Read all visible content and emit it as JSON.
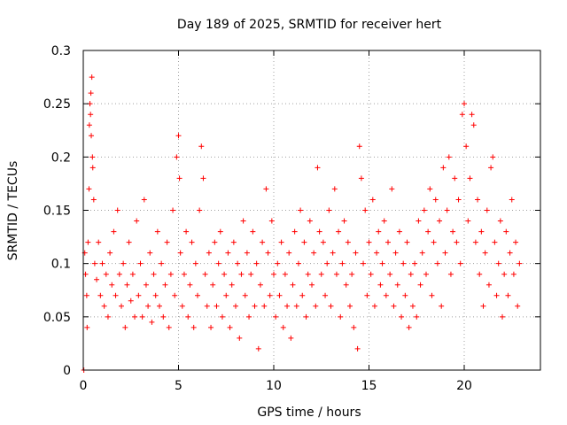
{
  "chart_data": {
    "type": "scatter",
    "title": "Day 189 of 2025, SRMTID for receiver hert",
    "xlabel": "GPS time / hours",
    "ylabel": "SRMTID / TECUs",
    "xlim": [
      0,
      24
    ],
    "ylim": [
      0,
      0.3
    ],
    "x_ticks": [
      0,
      5,
      10,
      15,
      20
    ],
    "x_tick_labels": [
      "0",
      "5",
      "10",
      "15",
      "20"
    ],
    "y_ticks": [
      0,
      0.05,
      0.1,
      0.15,
      0.2,
      0.25,
      0.3
    ],
    "y_tick_labels": [
      "0",
      "0.05",
      "0.1",
      "0.15",
      "0.2",
      "0.25",
      "0.3"
    ],
    "grid": true,
    "marker": "plus",
    "color": "#ff0000",
    "series": [
      {
        "name": "SRMTID",
        "points": [
          [
            0.03,
            0.0
          ],
          [
            0.08,
            0.11
          ],
          [
            0.12,
            0.09
          ],
          [
            0.18,
            0.07
          ],
          [
            0.2,
            0.04
          ],
          [
            0.25,
            0.12
          ],
          [
            0.3,
            0.17
          ],
          [
            0.32,
            0.23
          ],
          [
            0.35,
            0.25
          ],
          [
            0.38,
            0.24
          ],
          [
            0.4,
            0.26
          ],
          [
            0.42,
            0.22
          ],
          [
            0.45,
            0.275
          ],
          [
            0.48,
            0.2
          ],
          [
            0.5,
            0.19
          ],
          [
            0.55,
            0.16
          ],
          [
            0.6,
            0.1
          ],
          [
            0.7,
            0.085
          ],
          [
            0.8,
            0.12
          ],
          [
            0.9,
            0.07
          ],
          [
            1.0,
            0.1
          ],
          [
            1.1,
            0.06
          ],
          [
            1.2,
            0.09
          ],
          [
            1.3,
            0.05
          ],
          [
            1.4,
            0.11
          ],
          [
            1.5,
            0.08
          ],
          [
            1.6,
            0.13
          ],
          [
            1.7,
            0.07
          ],
          [
            1.8,
            0.15
          ],
          [
            1.9,
            0.09
          ],
          [
            2.0,
            0.06
          ],
          [
            2.1,
            0.1
          ],
          [
            2.2,
            0.04
          ],
          [
            2.3,
            0.08
          ],
          [
            2.4,
            0.12
          ],
          [
            2.5,
            0.065
          ],
          [
            2.6,
            0.09
          ],
          [
            2.7,
            0.05
          ],
          [
            2.8,
            0.14
          ],
          [
            2.9,
            0.07
          ],
          [
            3.0,
            0.1
          ],
          [
            3.1,
            0.05
          ],
          [
            3.2,
            0.16
          ],
          [
            3.3,
            0.08
          ],
          [
            3.4,
            0.06
          ],
          [
            3.5,
            0.11
          ],
          [
            3.6,
            0.045
          ],
          [
            3.7,
            0.09
          ],
          [
            3.8,
            0.07
          ],
          [
            3.9,
            0.13
          ],
          [
            4.0,
            0.06
          ],
          [
            4.1,
            0.1
          ],
          [
            4.2,
            0.05
          ],
          [
            4.3,
            0.08
          ],
          [
            4.4,
            0.12
          ],
          [
            4.5,
            0.04
          ],
          [
            4.6,
            0.09
          ],
          [
            4.7,
            0.15
          ],
          [
            4.8,
            0.07
          ],
          [
            4.9,
            0.2
          ],
          [
            5.0,
            0.22
          ],
          [
            5.05,
            0.18
          ],
          [
            5.1,
            0.11
          ],
          [
            5.2,
            0.06
          ],
          [
            5.3,
            0.09
          ],
          [
            5.4,
            0.13
          ],
          [
            5.5,
            0.05
          ],
          [
            5.6,
            0.08
          ],
          [
            5.7,
            0.12
          ],
          [
            5.8,
            0.04
          ],
          [
            5.9,
            0.1
          ],
          [
            6.0,
            0.07
          ],
          [
            6.1,
            0.15
          ],
          [
            6.2,
            0.21
          ],
          [
            6.3,
            0.18
          ],
          [
            6.4,
            0.09
          ],
          [
            6.5,
            0.06
          ],
          [
            6.6,
            0.11
          ],
          [
            6.7,
            0.04
          ],
          [
            6.8,
            0.08
          ],
          [
            6.9,
            0.12
          ],
          [
            7.0,
            0.06
          ],
          [
            7.1,
            0.1
          ],
          [
            7.2,
            0.13
          ],
          [
            7.3,
            0.05
          ],
          [
            7.4,
            0.09
          ],
          [
            7.5,
            0.07
          ],
          [
            7.6,
            0.11
          ],
          [
            7.7,
            0.04
          ],
          [
            7.8,
            0.08
          ],
          [
            7.9,
            0.12
          ],
          [
            8.0,
            0.06
          ],
          [
            8.1,
            0.1
          ],
          [
            8.2,
            0.03
          ],
          [
            8.3,
            0.09
          ],
          [
            8.4,
            0.14
          ],
          [
            8.5,
            0.07
          ],
          [
            8.6,
            0.11
          ],
          [
            8.7,
            0.05
          ],
          [
            8.8,
            0.09
          ],
          [
            8.9,
            0.13
          ],
          [
            9.0,
            0.06
          ],
          [
            9.1,
            0.1
          ],
          [
            9.2,
            0.02
          ],
          [
            9.3,
            0.08
          ],
          [
            9.4,
            0.12
          ],
          [
            9.5,
            0.06
          ],
          [
            9.6,
            0.17
          ],
          [
            9.7,
            0.11
          ],
          [
            9.8,
            0.07
          ],
          [
            9.9,
            0.14
          ],
          [
            10.0,
            0.09
          ],
          [
            10.1,
            0.05
          ],
          [
            10.2,
            0.1
          ],
          [
            10.3,
            0.07
          ],
          [
            10.4,
            0.12
          ],
          [
            10.5,
            0.04
          ],
          [
            10.6,
            0.09
          ],
          [
            10.7,
            0.06
          ],
          [
            10.8,
            0.11
          ],
          [
            10.9,
            0.03
          ],
          [
            11.0,
            0.08
          ],
          [
            11.1,
            0.13
          ],
          [
            11.2,
            0.06
          ],
          [
            11.3,
            0.1
          ],
          [
            11.4,
            0.15
          ],
          [
            11.5,
            0.07
          ],
          [
            11.6,
            0.12
          ],
          [
            11.7,
            0.05
          ],
          [
            11.8,
            0.09
          ],
          [
            11.9,
            0.14
          ],
          [
            12.0,
            0.08
          ],
          [
            12.1,
            0.11
          ],
          [
            12.2,
            0.06
          ],
          [
            12.3,
            0.19
          ],
          [
            12.4,
            0.13
          ],
          [
            12.5,
            0.09
          ],
          [
            12.6,
            0.12
          ],
          [
            12.7,
            0.07
          ],
          [
            12.8,
            0.1
          ],
          [
            12.9,
            0.15
          ],
          [
            13.0,
            0.06
          ],
          [
            13.1,
            0.11
          ],
          [
            13.2,
            0.17
          ],
          [
            13.3,
            0.09
          ],
          [
            13.4,
            0.13
          ],
          [
            13.5,
            0.05
          ],
          [
            13.6,
            0.1
          ],
          [
            13.7,
            0.14
          ],
          [
            13.8,
            0.08
          ],
          [
            13.9,
            0.12
          ],
          [
            14.0,
            0.06
          ],
          [
            14.1,
            0.09
          ],
          [
            14.2,
            0.04
          ],
          [
            14.3,
            0.11
          ],
          [
            14.4,
            0.02
          ],
          [
            14.5,
            0.21
          ],
          [
            14.6,
            0.18
          ],
          [
            14.7,
            0.1
          ],
          [
            14.8,
            0.15
          ],
          [
            14.9,
            0.07
          ],
          [
            15.0,
            0.12
          ],
          [
            15.1,
            0.09
          ],
          [
            15.2,
            0.16
          ],
          [
            15.3,
            0.06
          ],
          [
            15.4,
            0.11
          ],
          [
            15.5,
            0.13
          ],
          [
            15.6,
            0.08
          ],
          [
            15.7,
            0.1
          ],
          [
            15.8,
            0.14
          ],
          [
            15.9,
            0.07
          ],
          [
            16.0,
            0.12
          ],
          [
            16.1,
            0.09
          ],
          [
            16.2,
            0.17
          ],
          [
            16.3,
            0.06
          ],
          [
            16.4,
            0.11
          ],
          [
            16.5,
            0.08
          ],
          [
            16.6,
            0.13
          ],
          [
            16.7,
            0.05
          ],
          [
            16.8,
            0.1
          ],
          [
            16.9,
            0.07
          ],
          [
            17.0,
            0.12
          ],
          [
            17.1,
            0.04
          ],
          [
            17.2,
            0.09
          ],
          [
            17.3,
            0.06
          ],
          [
            17.4,
            0.1
          ],
          [
            17.5,
            0.05
          ],
          [
            17.6,
            0.14
          ],
          [
            17.7,
            0.08
          ],
          [
            17.8,
            0.11
          ],
          [
            17.9,
            0.15
          ],
          [
            18.0,
            0.09
          ],
          [
            18.1,
            0.13
          ],
          [
            18.2,
            0.17
          ],
          [
            18.3,
            0.07
          ],
          [
            18.4,
            0.12
          ],
          [
            18.5,
            0.16
          ],
          [
            18.6,
            0.1
          ],
          [
            18.7,
            0.14
          ],
          [
            18.8,
            0.06
          ],
          [
            18.9,
            0.19
          ],
          [
            19.0,
            0.11
          ],
          [
            19.1,
            0.15
          ],
          [
            19.2,
            0.2
          ],
          [
            19.3,
            0.09
          ],
          [
            19.4,
            0.13
          ],
          [
            19.5,
            0.18
          ],
          [
            19.6,
            0.12
          ],
          [
            19.7,
            0.16
          ],
          [
            19.8,
            0.1
          ],
          [
            19.9,
            0.24
          ],
          [
            20.0,
            0.25
          ],
          [
            20.1,
            0.21
          ],
          [
            20.2,
            0.14
          ],
          [
            20.3,
            0.18
          ],
          [
            20.4,
            0.24
          ],
          [
            20.5,
            0.23
          ],
          [
            20.6,
            0.12
          ],
          [
            20.7,
            0.16
          ],
          [
            20.8,
            0.09
          ],
          [
            20.9,
            0.13
          ],
          [
            21.0,
            0.06
          ],
          [
            21.1,
            0.11
          ],
          [
            21.2,
            0.15
          ],
          [
            21.3,
            0.08
          ],
          [
            21.4,
            0.19
          ],
          [
            21.5,
            0.2
          ],
          [
            21.6,
            0.12
          ],
          [
            21.7,
            0.07
          ],
          [
            21.8,
            0.1
          ],
          [
            21.9,
            0.14
          ],
          [
            22.0,
            0.05
          ],
          [
            22.1,
            0.09
          ],
          [
            22.2,
            0.13
          ],
          [
            22.3,
            0.07
          ],
          [
            22.4,
            0.11
          ],
          [
            22.5,
            0.16
          ],
          [
            22.6,
            0.09
          ],
          [
            22.7,
            0.12
          ],
          [
            22.8,
            0.06
          ],
          [
            22.9,
            0.1
          ]
        ]
      }
    ]
  }
}
